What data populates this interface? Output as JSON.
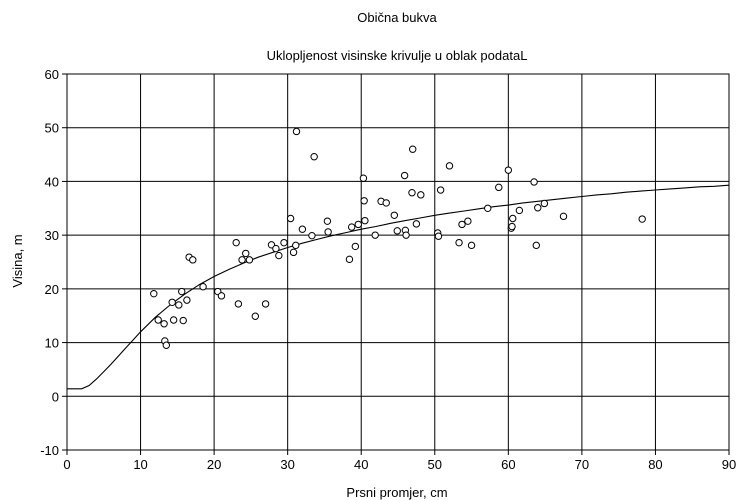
{
  "chart_data": {
    "type": "scatter",
    "title": "Obična bukva",
    "subtitle": "Uklopljenost visinske krivulje u oblak podataL",
    "xlabel": "Prsni promjer, cm",
    "ylabel": "Visina, m",
    "xlim": [
      0,
      90
    ],
    "ylim": [
      -10,
      60
    ],
    "xticks": [
      0,
      10,
      20,
      30,
      40,
      50,
      60,
      70,
      80,
      90
    ],
    "yticks": [
      -10,
      0,
      10,
      20,
      30,
      40,
      50,
      60
    ],
    "grid": true,
    "legend": "none",
    "colors": {
      "marker": "#000000",
      "line": "#000000",
      "grid": "#000000",
      "background": "#ffffff"
    },
    "points": [
      [
        11.8,
        19.1
      ],
      [
        12.4,
        14.2
      ],
      [
        13.2,
        13.5
      ],
      [
        13.3,
        10.3
      ],
      [
        13.5,
        9.5
      ],
      [
        14.3,
        17.5
      ],
      [
        14.5,
        14.2
      ],
      [
        15.2,
        17.0
      ],
      [
        15.6,
        19.5
      ],
      [
        15.8,
        14.1
      ],
      [
        16.3,
        17.9
      ],
      [
        16.6,
        25.9
      ],
      [
        17.1,
        25.4
      ],
      [
        18.5,
        20.4
      ],
      [
        20.5,
        19.5
      ],
      [
        21.0,
        18.7
      ],
      [
        23.0,
        28.6
      ],
      [
        23.3,
        17.2
      ],
      [
        23.8,
        25.4
      ],
      [
        24.3,
        26.6
      ],
      [
        24.8,
        25.4
      ],
      [
        25.6,
        14.9
      ],
      [
        27.0,
        17.2
      ],
      [
        27.8,
        28.2
      ],
      [
        28.4,
        27.5
      ],
      [
        28.8,
        26.2
      ],
      [
        29.5,
        28.6
      ],
      [
        30.4,
        33.1
      ],
      [
        30.8,
        26.8
      ],
      [
        31.1,
        28.1
      ],
      [
        31.2,
        49.3
      ],
      [
        32.0,
        31.1
      ],
      [
        33.3,
        29.9
      ],
      [
        33.6,
        44.6
      ],
      [
        35.4,
        32.6
      ],
      [
        35.5,
        30.6
      ],
      [
        38.4,
        25.5
      ],
      [
        38.7,
        31.5
      ],
      [
        39.2,
        27.9
      ],
      [
        39.6,
        32.0
      ],
      [
        40.3,
        40.6
      ],
      [
        40.4,
        36.4
      ],
      [
        40.5,
        32.7
      ],
      [
        41.9,
        30.0
      ],
      [
        42.7,
        36.3
      ],
      [
        43.4,
        36.0
      ],
      [
        44.5,
        33.7
      ],
      [
        44.9,
        30.8
      ],
      [
        45.9,
        41.1
      ],
      [
        46.0,
        30.9
      ],
      [
        46.1,
        30.0
      ],
      [
        46.9,
        37.9
      ],
      [
        47.0,
        46.0
      ],
      [
        47.5,
        32.1
      ],
      [
        48.1,
        37.5
      ],
      [
        50.4,
        30.4
      ],
      [
        50.5,
        29.8
      ],
      [
        50.8,
        38.4
      ],
      [
        52.0,
        42.9
      ],
      [
        53.3,
        28.6
      ],
      [
        53.7,
        32.0
      ],
      [
        54.5,
        32.6
      ],
      [
        55.0,
        28.1
      ],
      [
        57.2,
        35.0
      ],
      [
        58.7,
        38.9
      ],
      [
        60.0,
        42.1
      ],
      [
        60.4,
        31.3
      ],
      [
        60.5,
        31.6
      ],
      [
        60.6,
        33.1
      ],
      [
        61.5,
        34.6
      ],
      [
        63.5,
        39.9
      ],
      [
        63.8,
        28.1
      ],
      [
        64.0,
        35.1
      ],
      [
        64.9,
        35.9
      ],
      [
        67.5,
        33.5
      ],
      [
        78.2,
        33.0
      ]
    ],
    "curve": [
      [
        0,
        1.4
      ],
      [
        2,
        1.4
      ],
      [
        3,
        2.0
      ],
      [
        4,
        3.2
      ],
      [
        5,
        4.6
      ],
      [
        6,
        6.0
      ],
      [
        7,
        7.5
      ],
      [
        8,
        9.0
      ],
      [
        9,
        10.5
      ],
      [
        10,
        12.0
      ],
      [
        12,
        14.7
      ],
      [
        14,
        17.0
      ],
      [
        16,
        19.0
      ],
      [
        18,
        20.8
      ],
      [
        20,
        22.3
      ],
      [
        22,
        23.6
      ],
      [
        24,
        24.8
      ],
      [
        26,
        25.9
      ],
      [
        28,
        26.8
      ],
      [
        30,
        27.7
      ],
      [
        32,
        28.5
      ],
      [
        34,
        29.2
      ],
      [
        36,
        29.9
      ],
      [
        38,
        30.5
      ],
      [
        40,
        31.1
      ],
      [
        42,
        31.6
      ],
      [
        44,
        32.2
      ],
      [
        46,
        32.7
      ],
      [
        48,
        33.2
      ],
      [
        50,
        33.7
      ],
      [
        52,
        34.1
      ],
      [
        54,
        34.5
      ],
      [
        56,
        34.9
      ],
      [
        58,
        35.3
      ],
      [
        60,
        35.6
      ],
      [
        62,
        36.0
      ],
      [
        64,
        36.3
      ],
      [
        66,
        36.6
      ],
      [
        68,
        36.9
      ],
      [
        70,
        37.2
      ],
      [
        72,
        37.5
      ],
      [
        74,
        37.7
      ],
      [
        76,
        38.0
      ],
      [
        78,
        38.2
      ],
      [
        80,
        38.4
      ],
      [
        82,
        38.6
      ],
      [
        84,
        38.8
      ],
      [
        86,
        39.0
      ],
      [
        88,
        39.1
      ],
      [
        90,
        39.3
      ]
    ]
  }
}
